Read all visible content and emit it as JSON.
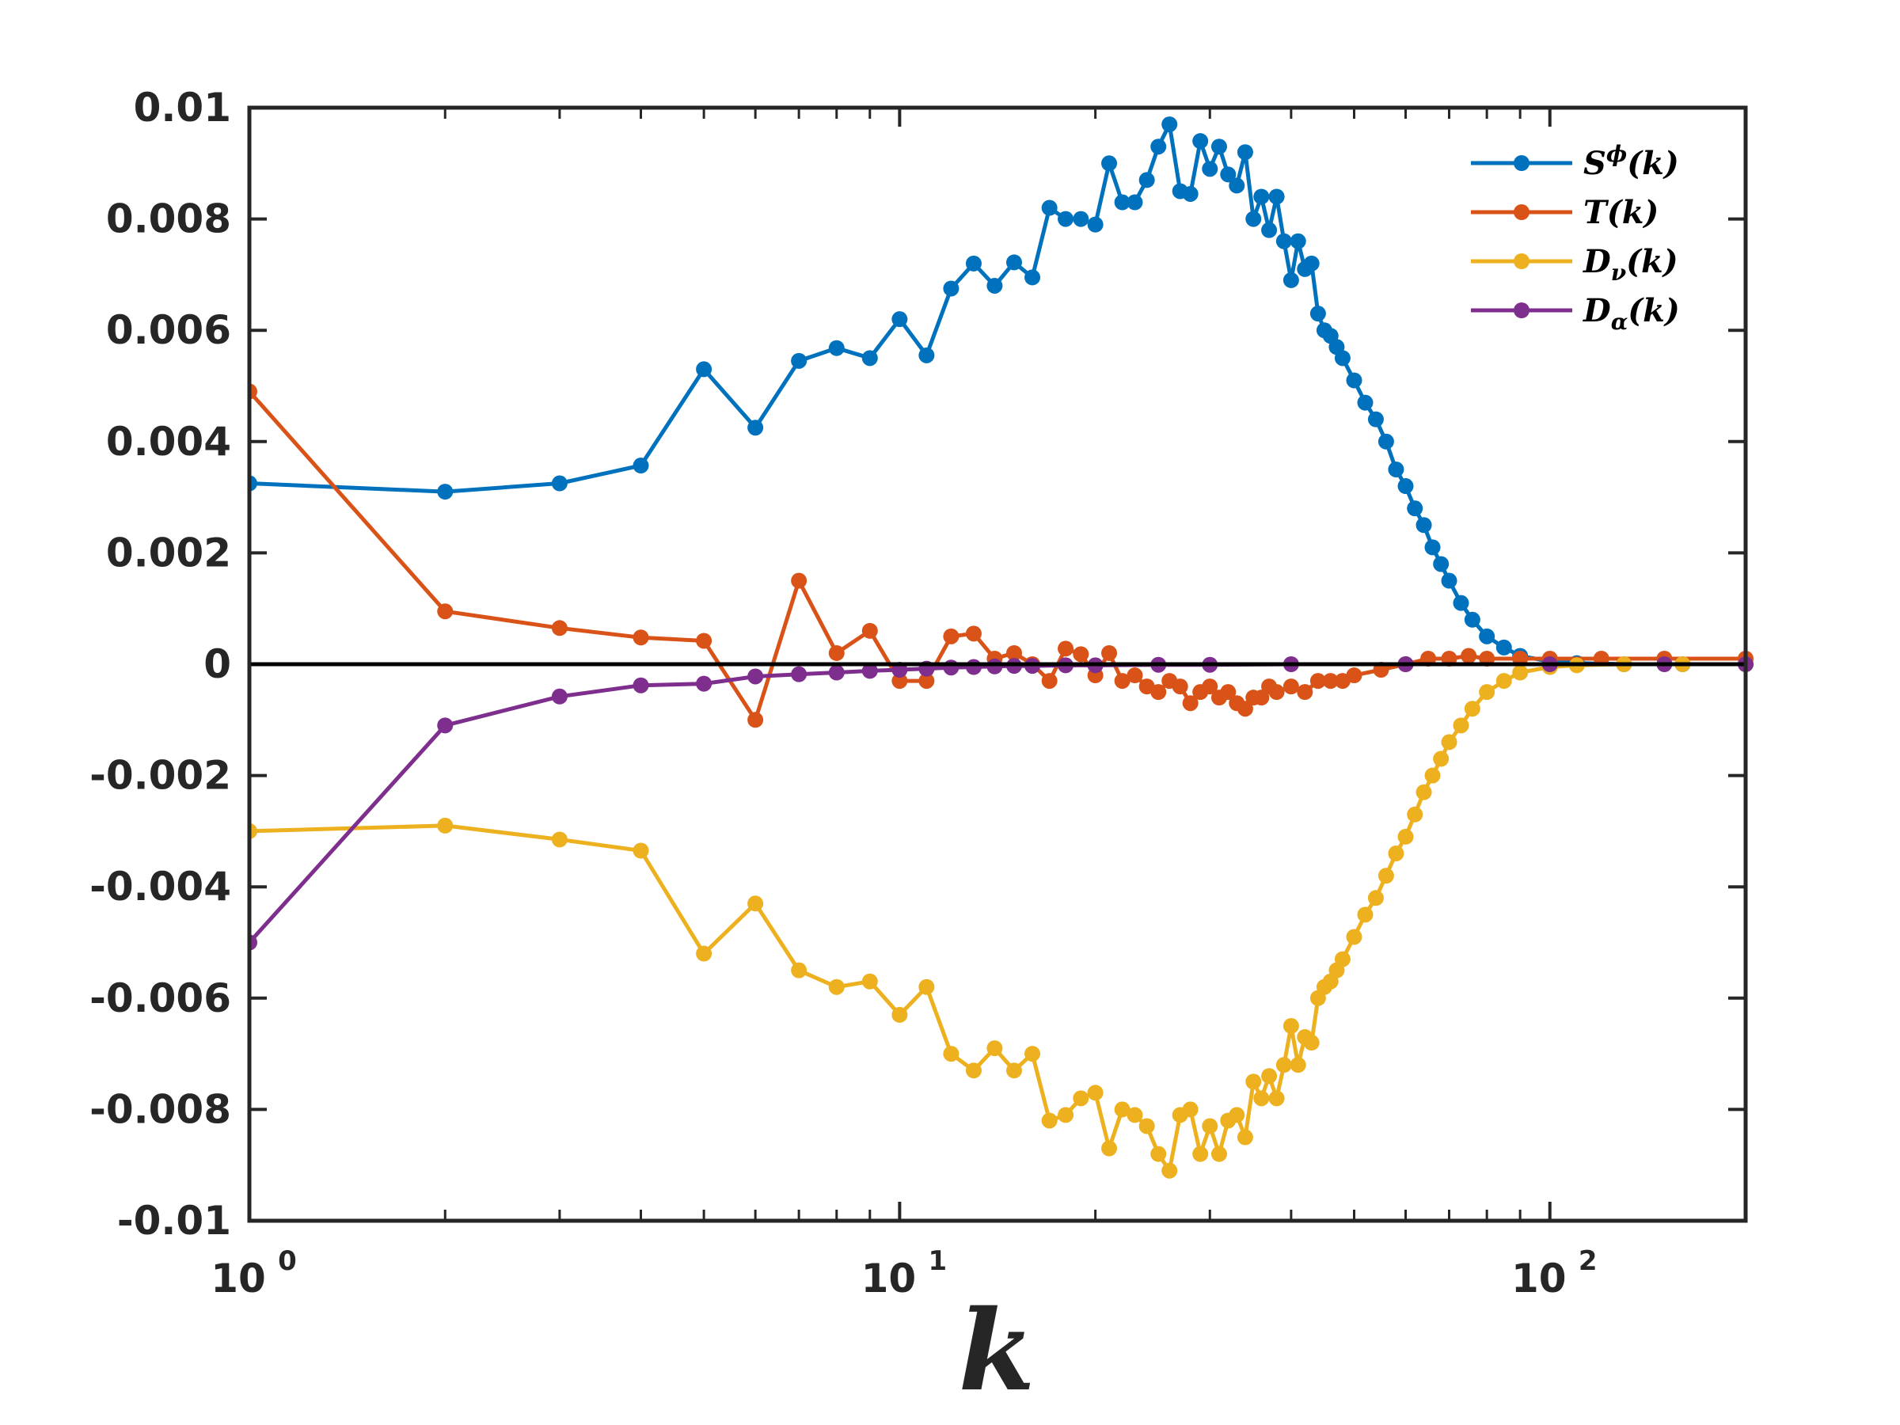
{
  "chart_data": {
    "type": "line",
    "title": "",
    "xlabel": "k",
    "ylabel": "",
    "xscale": "log",
    "xlim": [
      1,
      200
    ],
    "ylim": [
      -0.01,
      0.01
    ],
    "x_ticks": [
      {
        "base": "10",
        "exp": "0",
        "value": 1
      },
      {
        "base": "10",
        "exp": "1",
        "value": 10
      },
      {
        "base": "10",
        "exp": "2",
        "value": 100
      }
    ],
    "y_ticks": [
      {
        "label": "0.01",
        "value": 0.01
      },
      {
        "label": "0.008",
        "value": 0.008
      },
      {
        "label": "0.006",
        "value": 0.006
      },
      {
        "label": "0.004",
        "value": 0.004
      },
      {
        "label": "0.002",
        "value": 0.002
      },
      {
        "label": "0",
        "value": 0
      },
      {
        "label": "-0.002",
        "value": -0.002
      },
      {
        "label": "-0.004",
        "value": -0.004
      },
      {
        "label": "-0.006",
        "value": -0.006
      },
      {
        "label": "-0.008",
        "value": -0.008
      },
      {
        "label": "-0.01",
        "value": -0.01
      }
    ],
    "grid": false,
    "legend_position": "top-right",
    "zero_line": true,
    "series": [
      {
        "name": "S^φ(k)",
        "legend": {
          "base": "S",
          "script": "ϕ",
          "script_type": "sup",
          "arg": "(k)"
        },
        "color": "#0072BD",
        "points": [
          [
            1,
            0.00325
          ],
          [
            2,
            0.0031
          ],
          [
            3,
            0.00325
          ],
          [
            4,
            0.00357
          ],
          [
            5,
            0.0053
          ],
          [
            6,
            0.00425
          ],
          [
            7,
            0.00545
          ],
          [
            8,
            0.00568
          ],
          [
            9,
            0.0055
          ],
          [
            10,
            0.0062
          ],
          [
            11,
            0.00555
          ],
          [
            12,
            0.00675
          ],
          [
            13,
            0.0072
          ],
          [
            14,
            0.0068
          ],
          [
            15,
            0.00722
          ],
          [
            16,
            0.00695
          ],
          [
            17,
            0.0082
          ],
          [
            18,
            0.008
          ],
          [
            19,
            0.008
          ],
          [
            20,
            0.0079
          ],
          [
            21,
            0.009
          ],
          [
            22,
            0.0083
          ],
          [
            23,
            0.0083
          ],
          [
            24,
            0.0087
          ],
          [
            25,
            0.0093
          ],
          [
            26,
            0.0097
          ],
          [
            27,
            0.0085
          ],
          [
            28,
            0.00845
          ],
          [
            29,
            0.0094
          ],
          [
            30,
            0.0089
          ],
          [
            31,
            0.0093
          ],
          [
            32,
            0.0088
          ],
          [
            33,
            0.0086
          ],
          [
            34,
            0.0092
          ],
          [
            35,
            0.008
          ],
          [
            36,
            0.0084
          ],
          [
            37,
            0.0078
          ],
          [
            38,
            0.0084
          ],
          [
            39,
            0.0076
          ],
          [
            40,
            0.0069
          ],
          [
            41,
            0.0076
          ],
          [
            42,
            0.0071
          ],
          [
            43,
            0.0072
          ],
          [
            44,
            0.0063
          ],
          [
            45,
            0.006
          ],
          [
            46,
            0.0059
          ],
          [
            47,
            0.0057
          ],
          [
            48,
            0.0055
          ],
          [
            50,
            0.0051
          ],
          [
            52,
            0.0047
          ],
          [
            54,
            0.0044
          ],
          [
            56,
            0.004
          ],
          [
            58,
            0.0035
          ],
          [
            60,
            0.0032
          ],
          [
            62,
            0.0028
          ],
          [
            64,
            0.0025
          ],
          [
            66,
            0.0021
          ],
          [
            68,
            0.0018
          ],
          [
            70,
            0.0015
          ],
          [
            73,
            0.0011
          ],
          [
            76,
            0.0008
          ],
          [
            80,
            0.0005
          ],
          [
            85,
            0.0003
          ],
          [
            90,
            0.00015
          ],
          [
            100,
            5e-05
          ],
          [
            110,
            2e-05
          ],
          [
            130,
            0.0
          ],
          [
            160,
            0.0
          ],
          [
            200,
            0.0
          ]
        ]
      },
      {
        "name": "T(k)",
        "legend": {
          "base": "T",
          "script": "",
          "script_type": "none",
          "arg": "(k)"
        },
        "color": "#D95319",
        "points": [
          [
            1,
            0.0049
          ],
          [
            2,
            0.00095
          ],
          [
            3,
            0.00065
          ],
          [
            4,
            0.00048
          ],
          [
            5,
            0.00042
          ],
          [
            6,
            -0.001
          ],
          [
            7,
            0.0015
          ],
          [
            8,
            0.0002
          ],
          [
            9,
            0.0006
          ],
          [
            10,
            -0.0003
          ],
          [
            11,
            -0.0003
          ],
          [
            12,
            0.0005
          ],
          [
            13,
            0.00055
          ],
          [
            14,
            0.0001
          ],
          [
            15,
            0.0002
          ],
          [
            16,
            0.0
          ],
          [
            17,
            -0.0003
          ],
          [
            18,
            0.00028
          ],
          [
            19,
            0.00018
          ],
          [
            20,
            -0.0002
          ],
          [
            21,
            0.0002
          ],
          [
            22,
            -0.0003
          ],
          [
            23,
            -0.0002
          ],
          [
            24,
            -0.0004
          ],
          [
            25,
            -0.0005
          ],
          [
            26,
            -0.0003
          ],
          [
            27,
            -0.0004
          ],
          [
            28,
            -0.0007
          ],
          [
            29,
            -0.0005
          ],
          [
            30,
            -0.0004
          ],
          [
            31,
            -0.0006
          ],
          [
            32,
            -0.0005
          ],
          [
            33,
            -0.0007
          ],
          [
            34,
            -0.0008
          ],
          [
            35,
            -0.0006
          ],
          [
            36,
            -0.0006
          ],
          [
            37,
            -0.0004
          ],
          [
            38,
            -0.0005
          ],
          [
            40,
            -0.0004
          ],
          [
            42,
            -0.0005
          ],
          [
            44,
            -0.0003
          ],
          [
            46,
            -0.0003
          ],
          [
            48,
            -0.0003
          ],
          [
            50,
            -0.0002
          ],
          [
            55,
            -0.0001
          ],
          [
            60,
            0.0
          ],
          [
            65,
            0.0001
          ],
          [
            70,
            0.0001
          ],
          [
            75,
            0.00015
          ],
          [
            80,
            0.0001
          ],
          [
            90,
            0.0001
          ],
          [
            100,
            0.0001
          ],
          [
            120,
            0.0001
          ],
          [
            150,
            0.0001
          ],
          [
            200,
            0.0001
          ]
        ]
      },
      {
        "name": "D_ν(k)",
        "legend": {
          "base": "D",
          "script": "ν",
          "script_type": "sub",
          "arg": "(k)"
        },
        "color": "#EDB120",
        "points": [
          [
            1,
            -0.003
          ],
          [
            2,
            -0.0029
          ],
          [
            3,
            -0.00315
          ],
          [
            4,
            -0.00335
          ],
          [
            5,
            -0.0052
          ],
          [
            6,
            -0.0043
          ],
          [
            7,
            -0.0055
          ],
          [
            8,
            -0.0058
          ],
          [
            9,
            -0.0057
          ],
          [
            10,
            -0.0063
          ],
          [
            11,
            -0.0058
          ],
          [
            12,
            -0.007
          ],
          [
            13,
            -0.0073
          ],
          [
            14,
            -0.0069
          ],
          [
            15,
            -0.0073
          ],
          [
            16,
            -0.007
          ],
          [
            17,
            -0.0082
          ],
          [
            18,
            -0.0081
          ],
          [
            19,
            -0.0078
          ],
          [
            20,
            -0.0077
          ],
          [
            21,
            -0.0087
          ],
          [
            22,
            -0.008
          ],
          [
            23,
            -0.0081
          ],
          [
            24,
            -0.0083
          ],
          [
            25,
            -0.0088
          ],
          [
            26,
            -0.0091
          ],
          [
            27,
            -0.0081
          ],
          [
            28,
            -0.008
          ],
          [
            29,
            -0.0088
          ],
          [
            30,
            -0.0083
          ],
          [
            31,
            -0.0088
          ],
          [
            32,
            -0.0082
          ],
          [
            33,
            -0.0081
          ],
          [
            34,
            -0.0085
          ],
          [
            35,
            -0.0075
          ],
          [
            36,
            -0.0078
          ],
          [
            37,
            -0.0074
          ],
          [
            38,
            -0.0078
          ],
          [
            39,
            -0.0072
          ],
          [
            40,
            -0.0065
          ],
          [
            41,
            -0.0072
          ],
          [
            42,
            -0.0067
          ],
          [
            43,
            -0.0068
          ],
          [
            44,
            -0.006
          ],
          [
            45,
            -0.0058
          ],
          [
            46,
            -0.0057
          ],
          [
            47,
            -0.0055
          ],
          [
            48,
            -0.0053
          ],
          [
            50,
            -0.0049
          ],
          [
            52,
            -0.0045
          ],
          [
            54,
            -0.0042
          ],
          [
            56,
            -0.0038
          ],
          [
            58,
            -0.0034
          ],
          [
            60,
            -0.0031
          ],
          [
            62,
            -0.0027
          ],
          [
            64,
            -0.0023
          ],
          [
            66,
            -0.002
          ],
          [
            68,
            -0.0017
          ],
          [
            70,
            -0.0014
          ],
          [
            73,
            -0.0011
          ],
          [
            76,
            -0.0008
          ],
          [
            80,
            -0.0005
          ],
          [
            85,
            -0.0003
          ],
          [
            90,
            -0.00015
          ],
          [
            100,
            -5e-05
          ],
          [
            110,
            -2e-05
          ],
          [
            130,
            0.0
          ],
          [
            160,
            0.0
          ],
          [
            200,
            0.0
          ]
        ]
      },
      {
        "name": "D_α(k)",
        "legend": {
          "base": "D",
          "script": "α",
          "script_type": "sub",
          "arg": "(k)"
        },
        "color": "#7E2F8E",
        "points": [
          [
            1,
            -0.005
          ],
          [
            2,
            -0.0011
          ],
          [
            3,
            -0.00058
          ],
          [
            4,
            -0.00038
          ],
          [
            5,
            -0.00035
          ],
          [
            6,
            -0.00022
          ],
          [
            7,
            -0.00018
          ],
          [
            8,
            -0.00015
          ],
          [
            9,
            -0.00012
          ],
          [
            10,
            -0.0001
          ],
          [
            11,
            -8e-05
          ],
          [
            12,
            -6e-05
          ],
          [
            13,
            -5e-05
          ],
          [
            14,
            -4e-05
          ],
          [
            15,
            -3e-05
          ],
          [
            16,
            -3e-05
          ],
          [
            18,
            -2e-05
          ],
          [
            20,
            -2e-05
          ],
          [
            25,
            -1e-05
          ],
          [
            30,
            -1e-05
          ],
          [
            40,
            0.0
          ],
          [
            60,
            0.0
          ],
          [
            100,
            0.0
          ],
          [
            150,
            0.0
          ],
          [
            200,
            0.0
          ]
        ]
      }
    ]
  }
}
